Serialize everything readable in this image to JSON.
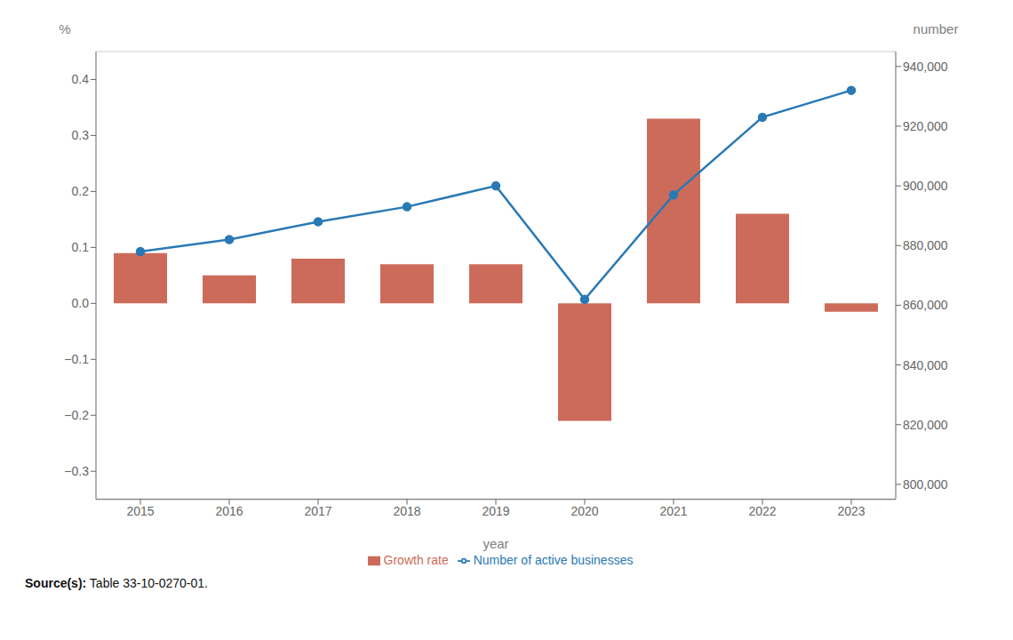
{
  "chart_data": {
    "type": "bar",
    "categories": [
      "2015",
      "2016",
      "2017",
      "2018",
      "2019",
      "2020",
      "2021",
      "2022",
      "2023"
    ],
    "x_label": "year",
    "y_label": "%",
    "y2_label": "number",
    "series": [
      {
        "name": "Growth rate",
        "type": "bar",
        "color": "#cd6b5a",
        "values": [
          0.09,
          0.05,
          0.08,
          0.07,
          0.07,
          -0.21,
          0.33,
          0.16,
          -0.015
        ]
      },
      {
        "name": "Number of active businesses",
        "type": "line",
        "color": "#2979b5",
        "marker": "circle",
        "axis": "y2",
        "values": [
          878000,
          882000,
          888000,
          893000,
          900000,
          862000,
          897000,
          923000,
          932000
        ]
      }
    ],
    "ylim": [
      -0.35,
      0.45
    ],
    "yticks": [
      {
        "value": -0.3,
        "label": "−0.3"
      },
      {
        "value": -0.2,
        "label": "−0.2"
      },
      {
        "value": -0.1,
        "label": "−0.1"
      },
      {
        "value": 0,
        "label": "0.0"
      },
      0.1,
      0.2,
      0.3,
      0.4
    ],
    "y2lim": [
      795000,
      945000
    ],
    "y2ticks": [
      {
        "value": 800000,
        "label": "800,000"
      },
      {
        "value": 820000,
        "label": "820,000"
      },
      {
        "value": 840000,
        "label": "840,000"
      },
      {
        "value": 860000,
        "label": "860,000"
      },
      {
        "value": 880000,
        "label": "880,000"
      },
      {
        "value": 900000,
        "label": "900,000"
      },
      {
        "value": 920000,
        "label": "920,000"
      },
      {
        "value": 940000,
        "label": "940,000"
      }
    ],
    "grid": true,
    "legend": "bottom",
    "annotations": [
      "Source(s): Table 33-10-0270-01."
    ]
  }
}
